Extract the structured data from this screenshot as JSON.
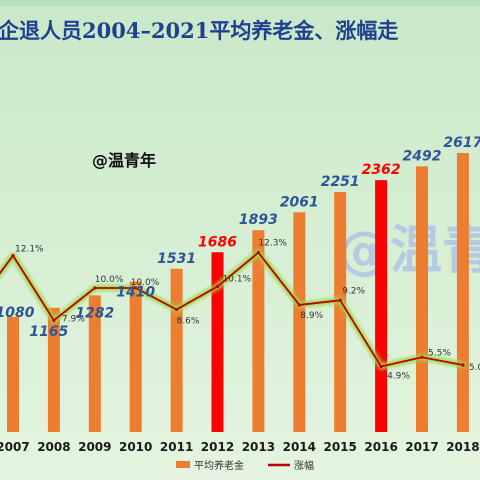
{
  "header": {
    "title": "企退人员2004–2021平均养老金、涨幅走",
    "handle": "@温青年",
    "watermark": "@温青"
  },
  "chart_data": {
    "type": "bar",
    "categories": [
      "2007",
      "2008",
      "2009",
      "2010",
      "2011",
      "2012",
      "2013",
      "2014",
      "2015",
      "2016",
      "2017",
      "2018"
    ],
    "series": [
      {
        "name": "平均养老金",
        "type": "bar",
        "values": [
          1080,
          1165,
          1282,
          1410,
          1531,
          1686,
          1893,
          2061,
          2251,
          2362,
          2492,
          2617
        ],
        "value_labels": [
          "1080",
          "1165",
          "1282",
          "1410",
          "1531",
          "1686",
          "1893",
          "2061",
          "2251",
          "2362",
          "2492",
          "2617"
        ],
        "highlight_categories": [
          "2012",
          "2016"
        ]
      },
      {
        "name": "涨幅",
        "type": "line",
        "values": [
          12.1,
          7.9,
          10.0,
          10.0,
          8.6,
          10.1,
          12.3,
          8.9,
          9.2,
          4.9,
          5.5,
          5.0
        ],
        "value_labels": [
          "12.1%",
          "7.9%",
          "10.0%",
          "10.0%",
          "8.6%",
          "10.1%",
          "12.3%",
          "8.9%",
          "9.2%",
          "4.9%",
          "5.5%",
          "5.0"
        ]
      }
    ],
    "yrange_bar": [
      0,
      2700
    ],
    "yrange_line": [
      0,
      18
    ],
    "legend_position": "bottom",
    "grid": false,
    "colors": {
      "bar": "#ed7d31",
      "bar_highlight": "#ff0000",
      "line": "#c00000",
      "line_glow": "#9ad94a",
      "value_label": "#2f5597",
      "value_label_highlight": "#ff0000"
    }
  }
}
